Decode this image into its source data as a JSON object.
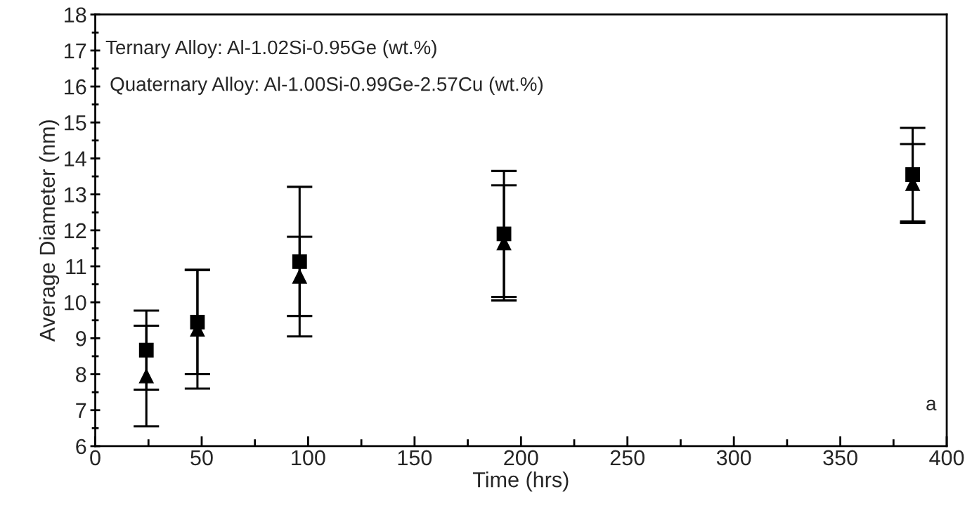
{
  "chart_data": {
    "type": "scatter",
    "xlabel": "Time (hrs)",
    "ylabel": "Average Diameter (nm)",
    "x": [
      24,
      48,
      96,
      192,
      384
    ],
    "series": [
      {
        "color": "#000000",
        "marker": "square",
        "values": [
          8.67,
          9.45,
          11.13,
          11.9,
          13.55
        ],
        "errors": [
          1.1,
          1.45,
          2.08,
          1.75,
          1.3
        ]
      },
      {
        "color": "#000000",
        "marker": "triangle",
        "values": [
          7.95,
          9.25,
          10.72,
          11.65,
          13.3
        ],
        "errors": [
          1.4,
          1.65,
          1.1,
          1.6,
          1.1
        ]
      }
    ],
    "xlim": [
      0,
      400
    ],
    "xticks": [
      0,
      50,
      100,
      150,
      200,
      250,
      300,
      350,
      400
    ],
    "ylim": [
      6,
      18
    ],
    "yticks": [
      6,
      7,
      8,
      9,
      10,
      11,
      12,
      13,
      14,
      15,
      16,
      17,
      18
    ],
    "grid": false,
    "legend": false,
    "annotations": [
      "Ternary Alloy: Al-1.02Si-0.95Ge (wt.%)",
      "Quaternary Alloy: Al-1.00Si-0.99Ge-2.57Cu (wt.%)",
      "a"
    ]
  }
}
